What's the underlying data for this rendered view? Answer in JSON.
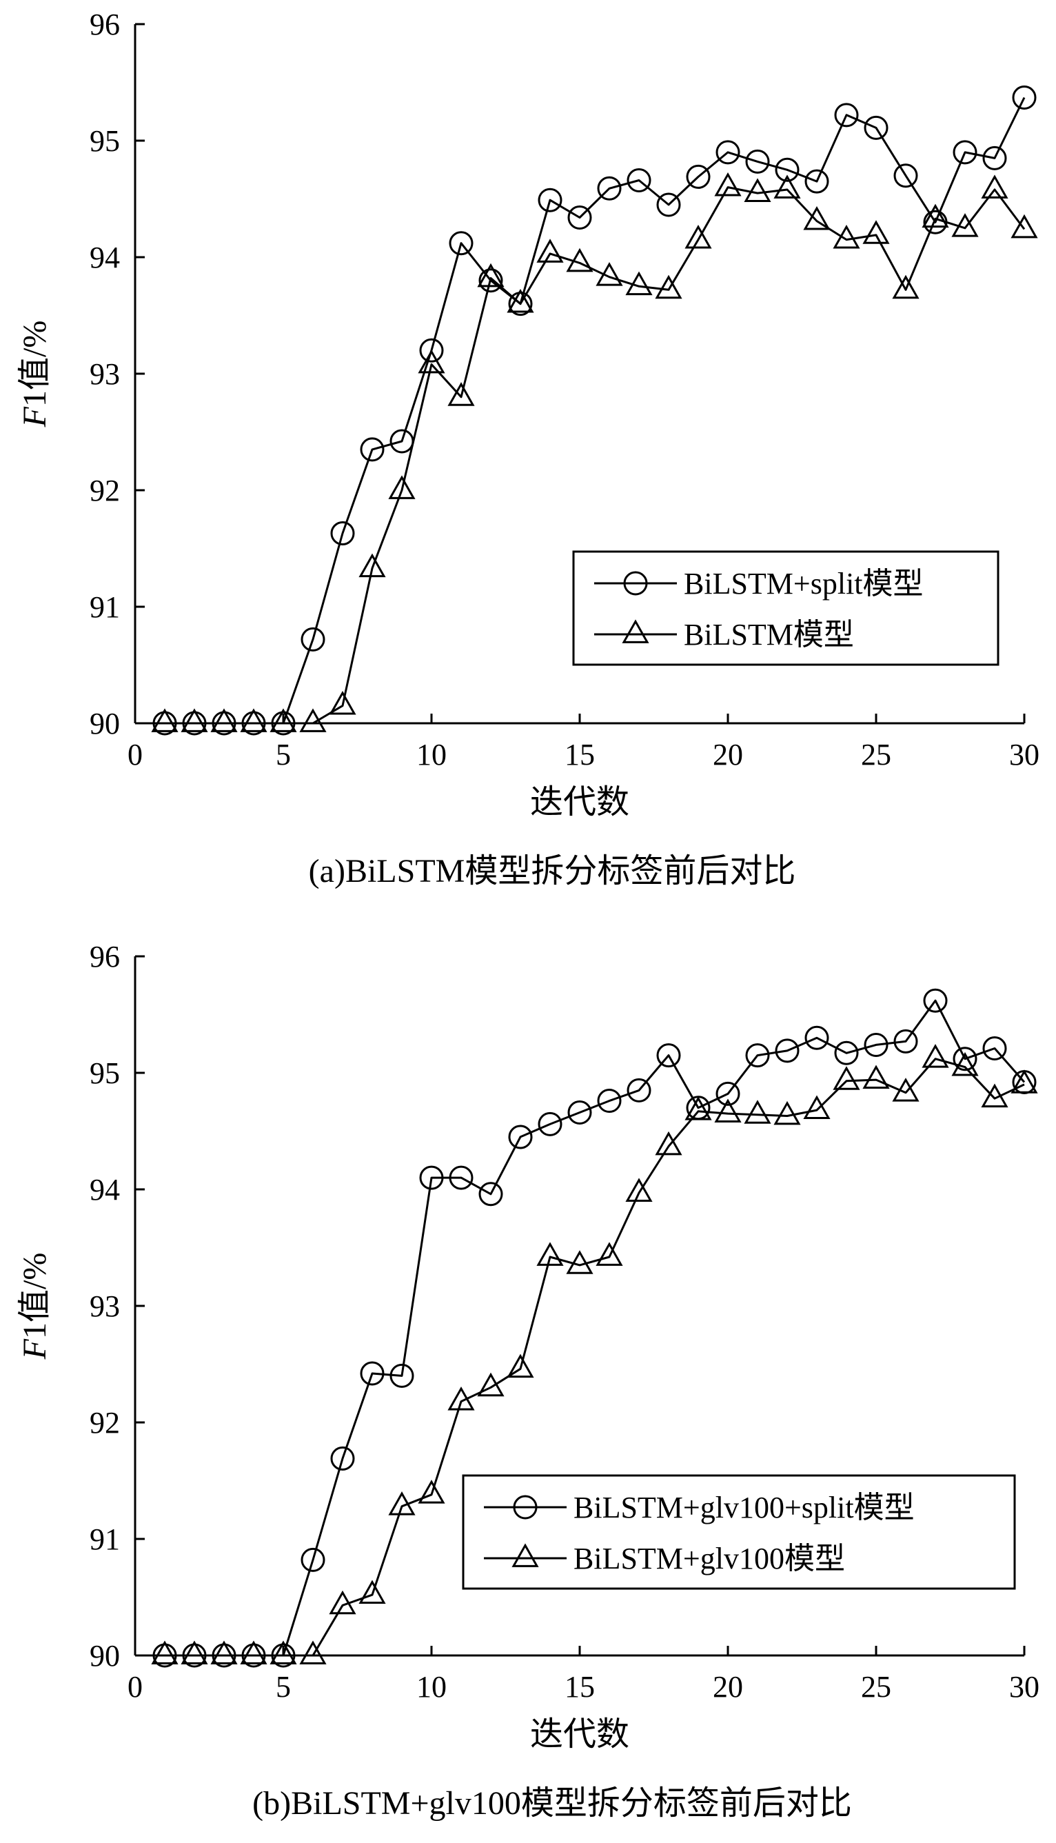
{
  "chart_data": [
    {
      "type": "line",
      "caption": "(a)BiLSTM模型拆分标签前后对比",
      "xlabel": "迭代数",
      "ylabel_italic": "F",
      "ylabel_rest": "1值/%",
      "xlim": [
        0,
        30
      ],
      "ylim": [
        90,
        96
      ],
      "xticks": [
        0,
        5,
        10,
        15,
        20,
        25,
        30
      ],
      "yticks": [
        90,
        91,
        92,
        93,
        94,
        95,
        96
      ],
      "legend_position": "right-middle",
      "x": [
        1,
        2,
        3,
        4,
        5,
        6,
        7,
        8,
        9,
        10,
        11,
        12,
        13,
        14,
        15,
        16,
        17,
        18,
        19,
        20,
        21,
        22,
        23,
        24,
        25,
        26,
        27,
        28,
        29,
        30
      ],
      "series": [
        {
          "name": "BiLSTM+split模型",
          "marker": "circle",
          "values": [
            90.0,
            90.0,
            90.0,
            90.0,
            90.0,
            90.72,
            91.63,
            92.35,
            92.42,
            93.2,
            94.12,
            93.8,
            93.6,
            94.49,
            94.34,
            94.59,
            94.66,
            94.45,
            94.69,
            94.9,
            94.82,
            94.75,
            94.65,
            95.22,
            95.11,
            94.7,
            94.3,
            94.9,
            94.85,
            95.37
          ]
        },
        {
          "name": "BiLSTM模型",
          "marker": "triangle",
          "values": [
            90.0,
            90.0,
            90.0,
            90.0,
            90.0,
            90.0,
            90.15,
            91.33,
            92.0,
            93.08,
            92.8,
            93.82,
            93.6,
            94.03,
            93.95,
            93.83,
            93.75,
            93.72,
            94.15,
            94.6,
            94.55,
            94.58,
            94.31,
            94.15,
            94.19,
            93.72,
            94.33,
            94.25,
            94.58,
            94.24
          ]
        }
      ]
    },
    {
      "type": "line",
      "caption": "(b)BiLSTM+glv100模型拆分标签前后对比",
      "xlabel": "迭代数",
      "ylabel_italic": "F",
      "ylabel_rest": "1值/%",
      "xlim": [
        0,
        30
      ],
      "ylim": [
        90,
        96
      ],
      "xticks": [
        0,
        5,
        10,
        15,
        20,
        25,
        30
      ],
      "yticks": [
        90,
        91,
        92,
        93,
        94,
        95,
        96
      ],
      "legend_position": "right-lower",
      "x": [
        1,
        2,
        3,
        4,
        5,
        6,
        7,
        8,
        9,
        10,
        11,
        12,
        13,
        14,
        15,
        16,
        17,
        18,
        19,
        20,
        21,
        22,
        23,
        24,
        25,
        26,
        27,
        28,
        29,
        30
      ],
      "series": [
        {
          "name": "BiLSTM+glv100+split模型",
          "marker": "circle",
          "values": [
            90.0,
            90.0,
            90.0,
            90.0,
            90.0,
            90.82,
            91.69,
            92.42,
            92.4,
            94.1,
            94.1,
            93.96,
            94.45,
            94.56,
            94.66,
            94.76,
            94.85,
            95.15,
            94.7,
            94.82,
            95.15,
            95.19,
            95.3,
            95.17,
            95.24,
            95.27,
            95.62,
            95.12,
            95.21,
            94.92
          ]
        },
        {
          "name": "BiLSTM+glv100模型",
          "marker": "triangle",
          "values": [
            90.0,
            90.0,
            90.0,
            90.0,
            90.0,
            90.0,
            90.43,
            90.52,
            91.28,
            91.38,
            92.18,
            92.3,
            92.46,
            93.42,
            93.35,
            93.42,
            93.97,
            94.37,
            94.67,
            94.65,
            94.64,
            94.63,
            94.68,
            94.93,
            94.94,
            94.83,
            95.12,
            95.05,
            94.78,
            94.9
          ]
        }
      ]
    }
  ]
}
